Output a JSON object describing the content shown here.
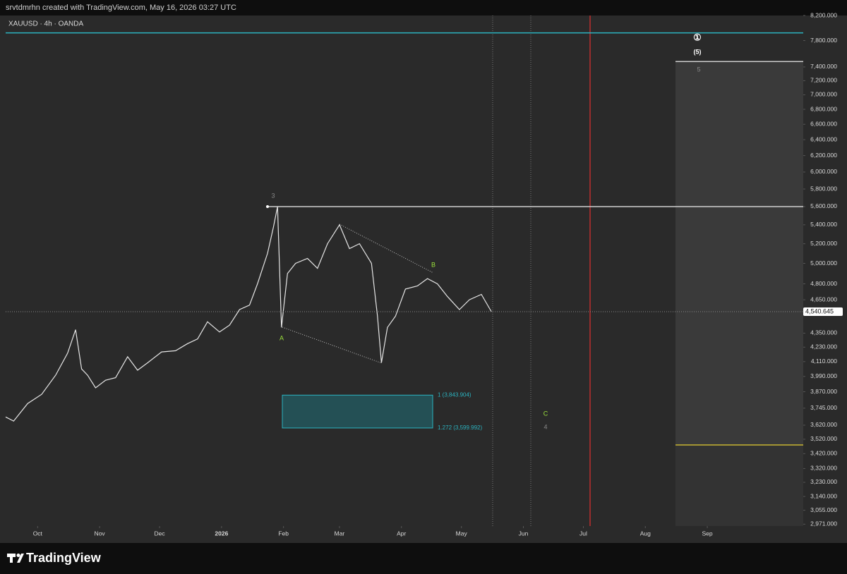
{
  "header": {
    "caption": "srvtdmrhn created with TradingView.com, May 16, 2026 03:27 UTC"
  },
  "chart_data": {
    "type": "line",
    "title": "XAUUSD · 4h · OANDA",
    "log_scale": true,
    "series": [
      {
        "name": "XAUUSD",
        "color": "#e6e6e6",
        "x": [
          -16,
          -12,
          -5,
          2,
          9,
          15,
          19,
          22,
          25,
          29,
          34,
          39,
          45,
          50,
          55,
          62,
          69,
          75,
          80,
          85,
          91,
          96,
          101,
          106,
          110,
          115,
          118,
          120,
          122,
          125,
          129,
          135,
          140,
          145,
          151,
          156,
          161,
          167,
          170,
          172,
          175,
          179,
          184,
          190,
          195,
          200,
          205,
          211,
          216,
          222,
          227
        ],
        "values": [
          3680,
          3650,
          3780,
          3850,
          4000,
          4180,
          4380,
          4050,
          4000,
          3900,
          3960,
          3980,
          4150,
          4040,
          4100,
          4190,
          4200,
          4260,
          4300,
          4450,
          4360,
          4420,
          4560,
          4600,
          4800,
          5100,
          5380,
          5600,
          4400,
          4900,
          5000,
          5050,
          4950,
          5200,
          5400,
          5150,
          5200,
          5000,
          4500,
          4100,
          4400,
          4500,
          4750,
          4780,
          4850,
          4800,
          4680,
          4560,
          4650,
          4700,
          4540.645
        ]
      }
    ],
    "price_label": "4,540.645",
    "xlim": [
      -16,
      383
    ],
    "xticks": [
      {
        "value": 0,
        "label": "Oct"
      },
      {
        "value": 31,
        "label": "Nov"
      },
      {
        "value": 61,
        "label": "Dec"
      },
      {
        "value": 92,
        "label": "2026"
      },
      {
        "value": 123,
        "label": "Feb"
      },
      {
        "value": 151,
        "label": "Mar"
      },
      {
        "value": 182,
        "label": "Apr"
      },
      {
        "value": 212,
        "label": "May"
      },
      {
        "value": 243,
        "label": "Jun"
      },
      {
        "value": 273,
        "label": "Jul"
      },
      {
        "value": 304,
        "label": "Aug"
      },
      {
        "value": 335,
        "label": "Sep"
      }
    ],
    "ylim": [
      2960,
      8200
    ],
    "yticks": [
      {
        "value": 8200,
        "label": "8,200.000"
      },
      {
        "value": 7800,
        "label": "7,800.000"
      },
      {
        "value": 7400,
        "label": "7,400.000"
      },
      {
        "value": 7200,
        "label": "7,200.000"
      },
      {
        "value": 7000,
        "label": "7,000.000"
      },
      {
        "value": 6800,
        "label": "6,800.000"
      },
      {
        "value": 6600,
        "label": "6,600.000"
      },
      {
        "value": 6400,
        "label": "6,400.000"
      },
      {
        "value": 6200,
        "label": "6,200.000"
      },
      {
        "value": 6000,
        "label": "6,000.000"
      },
      {
        "value": 5800,
        "label": "5,800.000"
      },
      {
        "value": 5600,
        "label": "5,600.000"
      },
      {
        "value": 5400,
        "label": "5,400.000"
      },
      {
        "value": 5200,
        "label": "5,200.000"
      },
      {
        "value": 5000,
        "label": "5,000.000"
      },
      {
        "value": 4800,
        "label": "4,800.000"
      },
      {
        "value": 4650,
        "label": "4,650.000"
      },
      {
        "value": 4350,
        "label": "4,350.000"
      },
      {
        "value": 4230,
        "label": "4,230.000"
      },
      {
        "value": 4110,
        "label": "4,110.000"
      },
      {
        "value": 3990,
        "label": "3,990.000"
      },
      {
        "value": 3870,
        "label": "3,870.000"
      },
      {
        "value": 3745,
        "label": "3,745.000"
      },
      {
        "value": 3620,
        "label": "3,620.000"
      },
      {
        "value": 3520,
        "label": "3,520.000"
      },
      {
        "value": 3420,
        "label": "3,420.000"
      },
      {
        "value": 3320,
        "label": "3,320.000"
      },
      {
        "value": 3230,
        "label": "3,230.000"
      },
      {
        "value": 3140,
        "label": "3,140.000"
      },
      {
        "value": 3055,
        "label": "3,055.000"
      },
      {
        "value": 2971,
        "label": "2,971.000"
      }
    ],
    "levels": [
      {
        "value": 7920,
        "color": "#2bb3c0"
      },
      {
        "value": 5600,
        "color": "#d0d0d0"
      }
    ],
    "target_box": {
      "top": 7480,
      "bottom_line": 3480,
      "color": "#3a3a3a",
      "line_color": "#c8b432"
    },
    "zone": {
      "top": 3843.904,
      "bottom": 3599.992,
      "color": "#2bb3c0",
      "labels": [
        "1 (3,843.904)",
        "1.272 (3,599.992)"
      ]
    },
    "annotations": [
      "3",
      "A",
      "B",
      "C",
      "4",
      "①",
      "(5)",
      "5"
    ]
  },
  "footer": {
    "brand": "TradingView"
  }
}
